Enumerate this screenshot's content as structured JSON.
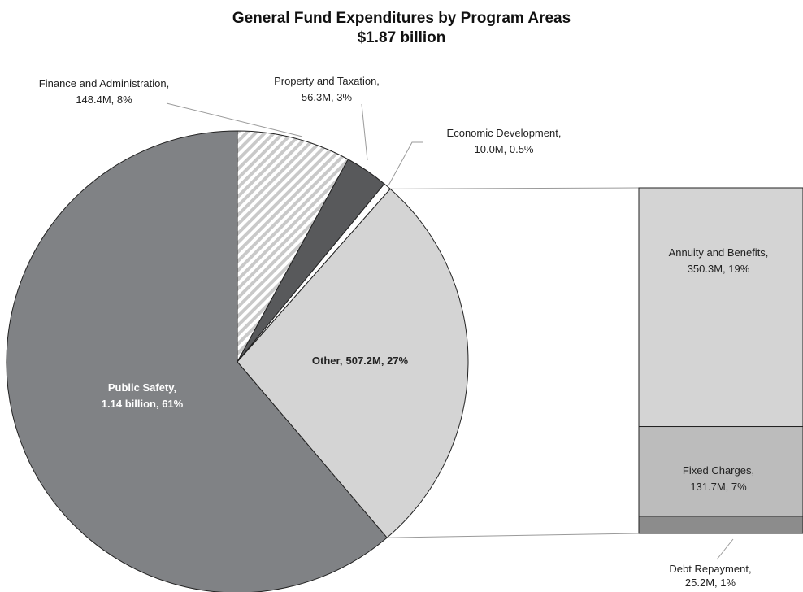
{
  "chart_data": {
    "type": "pie",
    "title": "General Fund Expenditures by Program Areas",
    "subtitle": "$1.87 billion",
    "categories": [
      "Finance and Administration,",
      "Property and Taxation,",
      "Economic Development,",
      "Other,",
      "Public Safety,"
    ],
    "values": [
      148.4,
      56.3,
      10.0,
      507.2,
      1140
    ],
    "value_labels": [
      "148.4M, 8%",
      "56.3M, 3%",
      "10.0M, 0.5%",
      "507.2M, 27%",
      "1.14 billion, 61%"
    ],
    "colors": [
      "#ffffff",
      "#58595b",
      "#ffffff",
      "#d4d4d4",
      "#808285"
    ],
    "patterns": [
      "hatch",
      null,
      null,
      null,
      null
    ],
    "bar": {
      "categories": [
        "Annuity and Benefits,",
        "Fixed Charges,",
        "Debt Repayment,"
      ],
      "values": [
        350.3,
        131.7,
        25.2
      ],
      "value_labels": [
        "350.3M, 19%",
        "131.7M, 7%",
        "25.2M, 1%"
      ],
      "colors": [
        "#d4d4d4",
        "#bcbcbc",
        "#8c8c8c"
      ]
    }
  }
}
